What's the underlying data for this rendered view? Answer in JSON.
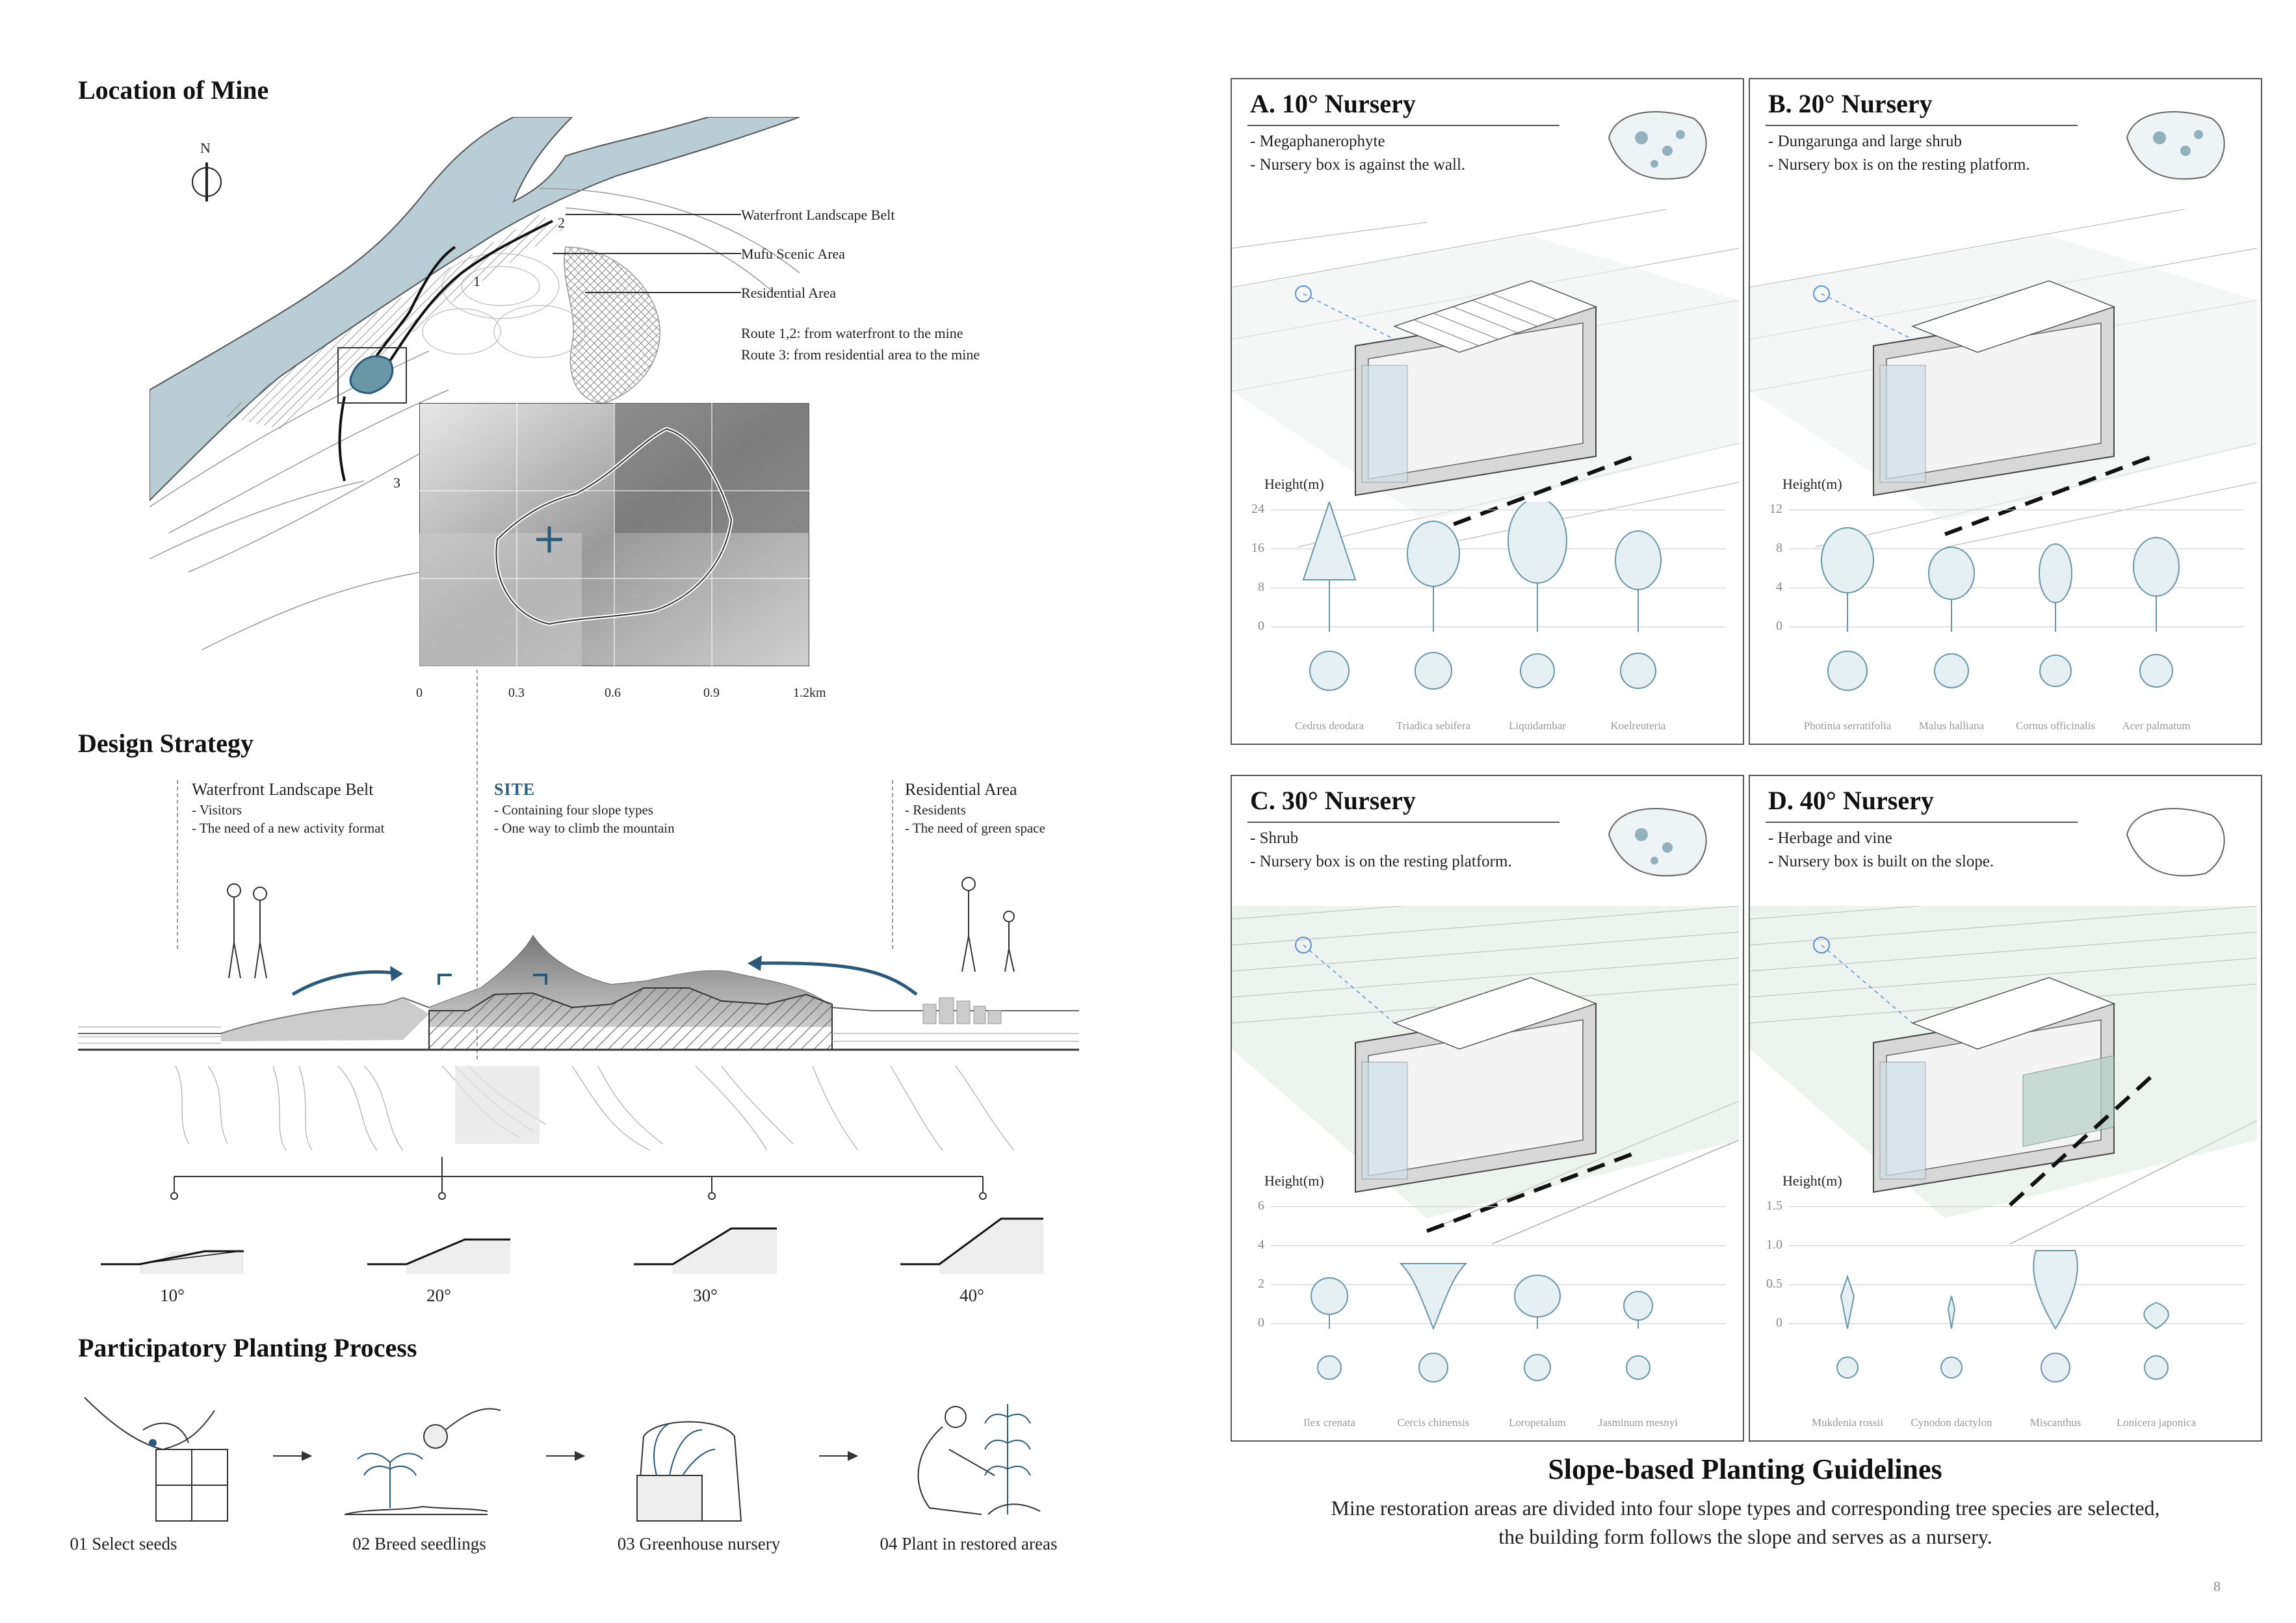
{
  "sections": {
    "location": "Location of Mine",
    "strategy": "Design Strategy",
    "process": "Participatory Planting Process",
    "guidelines_title": "Slope-based Planting Guidelines",
    "guidelines_text_1": "Mine restoration areas are divided into four slope types and corresponding tree species are selected,",
    "guidelines_text_2": "the building form follows the slope and serves as a nursery."
  },
  "map": {
    "north": "N",
    "legend": [
      "Waterfront Landscape Belt",
      "Mufu Scenic Area",
      "Residential Area"
    ],
    "routes_1": "Route 1,2: from waterfront to the mine",
    "routes_2": "Route 3: from residential area to the mine",
    "route_nums": [
      "1",
      "2",
      "3"
    ],
    "scale": [
      "0",
      "0.3",
      "0.6",
      "0.9",
      "1.2km"
    ]
  },
  "strategy": {
    "col1_head": "Waterfront Landscape Belt",
    "col1_l1": "- Visitors",
    "col1_l2": "- The need of a new activity format",
    "col2_head": "SITE",
    "col2_l1": "- Containing four slope types",
    "col2_l2": "- One way to climb the mountain",
    "col3_head": "Residential Area",
    "col3_l1": "- Residents",
    "col3_l2": "- The need of green space",
    "slopes": [
      "10°",
      "20°",
      "30°",
      "40°"
    ]
  },
  "process": {
    "steps": [
      "01 Select seeds",
      "02 Breed seedlings",
      "03 Greenhouse nursery",
      "04 Plant in restored areas"
    ]
  },
  "panels": [
    {
      "title": "A. 10° Nursery",
      "d1": "- Megaphanerophyte",
      "d2": "- Nursery box is against the wall.",
      "h": "Height(m)",
      "ticks": [
        "24",
        "16",
        "8",
        "0"
      ],
      "species": [
        "Cedrus deodara",
        "Triadica sebifera",
        "Liquidambar",
        "Koelreuteria"
      ]
    },
    {
      "title": "B. 20° Nursery",
      "d1": "- Dungarunga and large shrub",
      "d2": "- Nursery box is on the resting platform.",
      "h": "Height(m)",
      "ticks": [
        "12",
        "8",
        "4",
        "0"
      ],
      "species": [
        "Photinia serratifolia",
        "Malus halliana",
        "Cornus officinalis",
        "Acer palmatum"
      ]
    },
    {
      "title": "C. 30° Nursery",
      "d1": "- Shrub",
      "d2": "- Nursery box is on the resting platform.",
      "h": "Height(m)",
      "ticks": [
        "6",
        "4",
        "2",
        "0"
      ],
      "species": [
        "Ilex crenata",
        "Cercis chinensis",
        "Loropetalum",
        "Jasminum mesnyi"
      ]
    },
    {
      "title": "D. 40° Nursery",
      "d1": "- Herbage and vine",
      "d2": "- Nursery box is built on the slope.",
      "h": "Height(m)",
      "ticks": [
        "1.5",
        "1.0",
        "0.5",
        "0"
      ],
      "species": [
        "Mukdenia rossii",
        "Cynodon dactylon",
        "Miscanthus",
        "Lonicera japonica"
      ]
    }
  ],
  "page_number": "8",
  "colors": {
    "water": "#b9cdd4",
    "accent": "#2a5a7a",
    "plant": "#6a97a6"
  }
}
